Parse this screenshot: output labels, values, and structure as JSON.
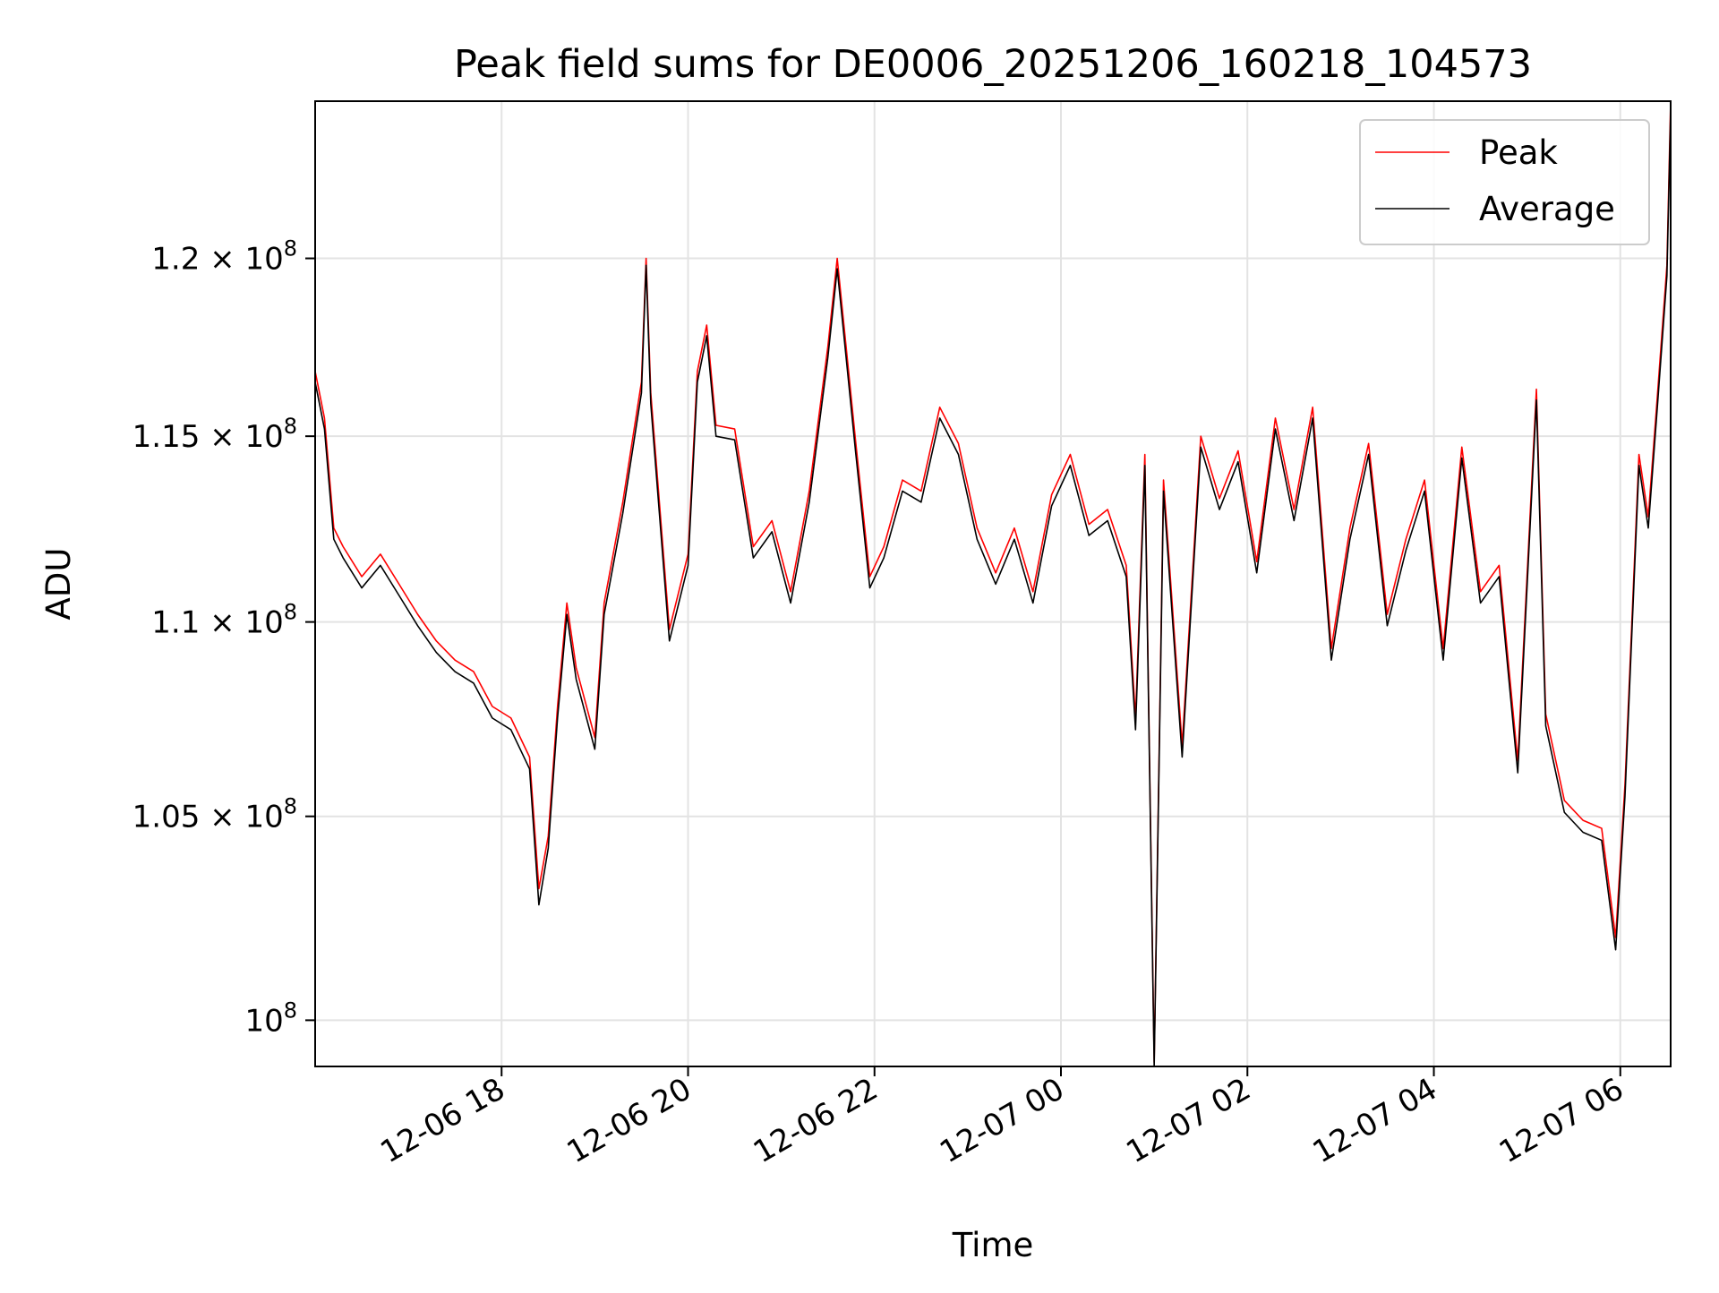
{
  "chart_data": {
    "type": "line",
    "title": "Peak field sums for DE0006_20251206_160218_104573",
    "xlabel": "Time",
    "ylabel": "ADU",
    "y_scale": "log",
    "x_range_hours": [
      16.0,
      30.54
    ],
    "ylim": [
      98900000,
      124600000
    ],
    "grid": true,
    "legend_position": "top-right",
    "x_ticks": [
      {
        "hours": 18,
        "label": "12-06 18"
      },
      {
        "hours": 20,
        "label": "12-06 20"
      },
      {
        "hours": 22,
        "label": "12-06 22"
      },
      {
        "hours": 24,
        "label": "12-07 00"
      },
      {
        "hours": 26,
        "label": "12-07 02"
      },
      {
        "hours": 28,
        "label": "12-07 04"
      },
      {
        "hours": 30,
        "label": "12-07 06"
      }
    ],
    "y_ticks": [
      {
        "value": 100000000,
        "mantissa": "",
        "exponent": "8"
      },
      {
        "value": 105000000,
        "mantissa": "1.05",
        "exponent": "8"
      },
      {
        "value": 110000000,
        "mantissa": "1.1",
        "exponent": "8"
      },
      {
        "value": 115000000,
        "mantissa": "1.15",
        "exponent": "8"
      },
      {
        "value": 120000000,
        "mantissa": "1.2",
        "exponent": "8"
      }
    ],
    "series": [
      {
        "name": "Peak",
        "color": "#ff0000",
        "x_hours": [
          16.0,
          16.1,
          16.2,
          16.3,
          16.5,
          16.7,
          16.9,
          17.1,
          17.3,
          17.5,
          17.7,
          17.9,
          18.1,
          18.3,
          18.4,
          18.5,
          18.6,
          18.7,
          18.8,
          19.0,
          19.1,
          19.3,
          19.5,
          19.55,
          19.6,
          19.8,
          20.0,
          20.1,
          20.2,
          20.3,
          20.5,
          20.7,
          20.9,
          21.1,
          21.3,
          21.5,
          21.6,
          21.8,
          21.95,
          22.1,
          22.3,
          22.5,
          22.7,
          22.9,
          23.1,
          23.3,
          23.5,
          23.7,
          23.9,
          24.1,
          24.3,
          24.5,
          24.7,
          24.8,
          24.9,
          25.0,
          25.1,
          25.3,
          25.5,
          25.7,
          25.9,
          26.1,
          26.3,
          26.5,
          26.7,
          26.9,
          27.1,
          27.3,
          27.5,
          27.7,
          27.9,
          28.1,
          28.3,
          28.5,
          28.7,
          28.9,
          29.1,
          29.2,
          29.4,
          29.6,
          29.8,
          29.95,
          30.05,
          30.2,
          30.3,
          30.4,
          30.5,
          30.54
        ],
        "values": [
          116800000,
          115500000,
          112500000,
          112000000,
          111200000,
          111800000,
          111000000,
          110200000,
          109500000,
          109000000,
          108700000,
          107800000,
          107500000,
          106500000,
          103200000,
          104500000,
          107800000,
          110500000,
          108800000,
          107000000,
          110500000,
          113200000,
          116500000,
          120000000,
          116200000,
          109800000,
          111800000,
          116800000,
          118100000,
          115300000,
          115200000,
          112000000,
          112700000,
          110800000,
          113500000,
          117500000,
          120000000,
          114800000,
          111200000,
          112000000,
          113800000,
          113500000,
          115800000,
          114800000,
          112500000,
          111300000,
          112500000,
          110800000,
          113400000,
          114500000,
          112600000,
          113000000,
          111500000,
          107500000,
          114500000,
          99000000,
          113800000,
          106800000,
          115000000,
          113300000,
          114600000,
          111600000,
          115500000,
          113000000,
          115800000,
          109300000,
          112500000,
          114800000,
          110200000,
          112200000,
          113800000,
          109300000,
          114700000,
          110800000,
          111500000,
          106400000,
          116300000,
          107600000,
          105400000,
          104900000,
          104700000,
          102000000,
          105800000,
          114500000,
          112800000,
          116200000,
          119800000,
          124600000
        ]
      },
      {
        "name": "Average",
        "color": "#000000",
        "x_hours": [
          16.0,
          16.1,
          16.2,
          16.3,
          16.5,
          16.7,
          16.9,
          17.1,
          17.3,
          17.5,
          17.7,
          17.9,
          18.1,
          18.3,
          18.4,
          18.5,
          18.6,
          18.7,
          18.8,
          19.0,
          19.1,
          19.3,
          19.5,
          19.55,
          19.6,
          19.8,
          20.0,
          20.1,
          20.2,
          20.3,
          20.5,
          20.7,
          20.9,
          21.1,
          21.3,
          21.5,
          21.6,
          21.8,
          21.95,
          22.1,
          22.3,
          22.5,
          22.7,
          22.9,
          23.1,
          23.3,
          23.5,
          23.7,
          23.9,
          24.1,
          24.3,
          24.5,
          24.7,
          24.8,
          24.9,
          25.0,
          25.1,
          25.3,
          25.5,
          25.7,
          25.9,
          26.1,
          26.3,
          26.5,
          26.7,
          26.9,
          27.1,
          27.3,
          27.5,
          27.7,
          27.9,
          28.1,
          28.3,
          28.5,
          28.7,
          28.9,
          29.1,
          29.2,
          29.4,
          29.6,
          29.8,
          29.95,
          30.05,
          30.2,
          30.3,
          30.4,
          30.5,
          30.54
        ],
        "values": [
          116500000,
          115200000,
          112200000,
          111700000,
          110900000,
          111500000,
          110700000,
          109900000,
          109200000,
          108700000,
          108400000,
          107500000,
          107200000,
          106200000,
          102800000,
          104200000,
          107500000,
          110200000,
          108500000,
          106700000,
          110200000,
          112900000,
          116200000,
          119800000,
          115900000,
          109500000,
          111500000,
          116500000,
          117800000,
          115000000,
          114900000,
          111700000,
          112400000,
          110500000,
          113200000,
          117200000,
          119700000,
          114500000,
          110900000,
          111700000,
          113500000,
          113200000,
          115500000,
          114500000,
          112200000,
          111000000,
          112200000,
          110500000,
          113100000,
          114200000,
          112300000,
          112700000,
          111200000,
          107200000,
          114200000,
          98900000,
          113500000,
          106500000,
          114700000,
          113000000,
          114300000,
          111300000,
          115200000,
          112700000,
          115500000,
          109000000,
          112200000,
          114500000,
          109900000,
          111900000,
          113500000,
          109000000,
          114400000,
          110500000,
          111200000,
          106100000,
          116000000,
          107300000,
          105100000,
          104600000,
          104400000,
          101700000,
          105500000,
          114200000,
          112500000,
          115900000,
          119500000,
          124300000
        ]
      }
    ]
  }
}
